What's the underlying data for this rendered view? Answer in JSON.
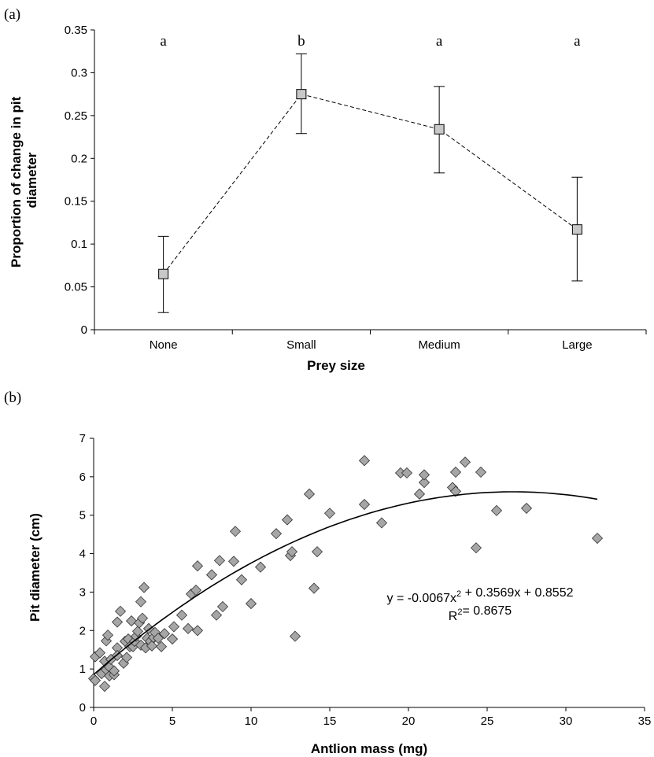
{
  "chart_data": [
    {
      "panel_label": "(a)",
      "type": "line",
      "categories": [
        "None",
        "Small",
        "Medium",
        "Large"
      ],
      "values": [
        0.065,
        0.275,
        0.234,
        0.117
      ],
      "error_upper": [
        0.109,
        0.322,
        0.284,
        0.178
      ],
      "error_lower": [
        0.02,
        0.229,
        0.183,
        0.057
      ],
      "significance_letters": [
        "a",
        "b",
        "a",
        "a"
      ],
      "xlabel": "Prey size",
      "ylabel": "Proportion of  change in pit diameter",
      "ylim": [
        0,
        0.35
      ],
      "yticks": [
        "0",
        "0.05",
        "0.1",
        "0.15",
        "0.2",
        "0.25",
        "0.3",
        "0.35"
      ],
      "line_style": "dashed",
      "marker": "square",
      "marker_color": "#c8c8c8",
      "grid": false
    },
    {
      "panel_label": "(b)",
      "type": "scatter",
      "xlabel": "Antlion mass (mg)",
      "ylabel": "Pit diameter (cm)",
      "xlim": [
        0,
        35
      ],
      "ylim": [
        0,
        7
      ],
      "xticks": [
        "0",
        "5",
        "10",
        "15",
        "20",
        "25",
        "30",
        "35"
      ],
      "yticks": [
        "0",
        "1",
        "2",
        "3",
        "4",
        "5",
        "6",
        "7"
      ],
      "marker": "diamond",
      "marker_color": "#a6a6a6",
      "grid": false,
      "points": [
        [
          0.0,
          0.75
        ],
        [
          0.1,
          0.7
        ],
        [
          0.1,
          1.32
        ],
        [
          0.4,
          1.42
        ],
        [
          0.5,
          0.88
        ],
        [
          0.7,
          0.55
        ],
        [
          0.7,
          1.2
        ],
        [
          0.8,
          0.98
        ],
        [
          0.8,
          1.73
        ],
        [
          0.9,
          1.88
        ],
        [
          1.0,
          0.82
        ],
        [
          1.0,
          1.05
        ],
        [
          1.1,
          1.25
        ],
        [
          1.3,
          0.85
        ],
        [
          1.3,
          0.95
        ],
        [
          1.5,
          1.55
        ],
        [
          1.5,
          2.22
        ],
        [
          1.5,
          1.35
        ],
        [
          1.7,
          2.5
        ],
        [
          1.9,
          1.15
        ],
        [
          2.0,
          1.72
        ],
        [
          2.1,
          1.3
        ],
        [
          2.2,
          1.78
        ],
        [
          2.3,
          1.58
        ],
        [
          2.4,
          2.25
        ],
        [
          2.5,
          1.58
        ],
        [
          2.6,
          1.72
        ],
        [
          2.7,
          1.85
        ],
        [
          2.8,
          1.98
        ],
        [
          2.9,
          2.2
        ],
        [
          3.0,
          1.62
        ],
        [
          3.0,
          2.75
        ],
        [
          3.1,
          2.32
        ],
        [
          3.2,
          3.12
        ],
        [
          3.3,
          1.55
        ],
        [
          3.4,
          1.8
        ],
        [
          3.5,
          2.05
        ],
        [
          3.6,
          1.72
        ],
        [
          3.7,
          1.6
        ],
        [
          3.8,
          1.82
        ],
        [
          3.9,
          1.95
        ],
        [
          4.1,
          1.8
        ],
        [
          4.3,
          1.58
        ],
        [
          4.5,
          1.92
        ],
        [
          5.0,
          1.78
        ],
        [
          5.1,
          2.1
        ],
        [
          5.6,
          2.4
        ],
        [
          6.0,
          2.05
        ],
        [
          6.2,
          2.95
        ],
        [
          6.5,
          3.05
        ],
        [
          6.6,
          2.0
        ],
        [
          6.6,
          3.68
        ],
        [
          7.5,
          3.45
        ],
        [
          7.8,
          2.4
        ],
        [
          8.0,
          3.82
        ],
        [
          8.2,
          2.62
        ],
        [
          8.9,
          3.8
        ],
        [
          9.0,
          4.58
        ],
        [
          9.4,
          3.32
        ],
        [
          10.0,
          2.7
        ],
        [
          10.6,
          3.65
        ],
        [
          11.6,
          4.52
        ],
        [
          12.3,
          4.88
        ],
        [
          12.5,
          3.95
        ],
        [
          12.6,
          4.05
        ],
        [
          12.8,
          1.85
        ],
        [
          13.7,
          5.55
        ],
        [
          14.0,
          3.1
        ],
        [
          14.2,
          4.05
        ],
        [
          15.0,
          5.05
        ],
        [
          17.2,
          6.42
        ],
        [
          17.2,
          5.28
        ],
        [
          18.3,
          4.8
        ],
        [
          19.5,
          6.1
        ],
        [
          19.9,
          6.1
        ],
        [
          20.7,
          5.55
        ],
        [
          21.0,
          5.85
        ],
        [
          21.0,
          6.05
        ],
        [
          22.8,
          5.72
        ],
        [
          23.0,
          6.12
        ],
        [
          23.0,
          5.62
        ],
        [
          23.6,
          6.38
        ],
        [
          24.3,
          4.15
        ],
        [
          24.6,
          6.12
        ],
        [
          25.6,
          5.12
        ],
        [
          27.5,
          5.18
        ],
        [
          32.0,
          4.4
        ]
      ],
      "trendline": {
        "type": "polynomial",
        "coefficients": [
          -0.0067,
          0.3569,
          0.8552
        ],
        "equation": "y = -0.0067x² + 0.3569x + 0.8552",
        "r2_text": "R²= 0.8675"
      }
    }
  ]
}
